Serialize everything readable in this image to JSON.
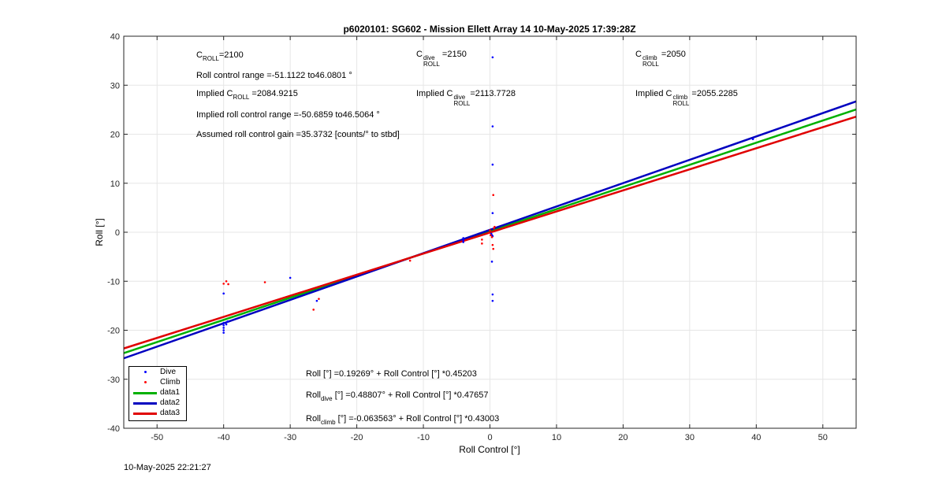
{
  "chart_data": {
    "type": "scatter",
    "title": "p6020101: SG602 - Mission Ellett Array 14 10-May-2025 17:39:28Z",
    "xlabel": "Roll Control [°]",
    "ylabel": "Roll [°]",
    "xlim": [
      -55,
      55
    ],
    "ylim": [
      -40,
      40
    ],
    "xticks": [
      -50,
      -40,
      -30,
      -20,
      -10,
      0,
      10,
      20,
      30,
      40,
      50
    ],
    "yticks": [
      -40,
      -30,
      -20,
      -10,
      0,
      10,
      20,
      30,
      40
    ],
    "grid": true,
    "legend_placement": "bottom-left",
    "series": [
      {
        "name": "Dive",
        "kind": "points",
        "color": "#0000ff",
        "points": [
          [
            -40,
            -12.5
          ],
          [
            -40,
            -18.5
          ],
          [
            -40,
            -19
          ],
          [
            -40,
            -19.5
          ],
          [
            -40,
            -20
          ],
          [
            -40,
            -20.5
          ],
          [
            -39.6,
            -18.8
          ],
          [
            -39.4,
            -18.2
          ],
          [
            -30,
            -9.3
          ],
          [
            -26,
            -14
          ],
          [
            -4,
            -1.2
          ],
          [
            -4,
            -1.6
          ],
          [
            -4,
            -2.0
          ],
          [
            0.2,
            -0.3
          ],
          [
            0.3,
            -0.6
          ],
          [
            0.4,
            -0.8
          ],
          [
            0.4,
            35.7
          ],
          [
            0.4,
            21.6
          ],
          [
            0.4,
            13.8
          ],
          [
            0.4,
            3.9
          ],
          [
            0.3,
            -6
          ],
          [
            0.4,
            -12.7
          ],
          [
            0.4,
            -14
          ],
          [
            16,
            8.2
          ],
          [
            39.5,
            19
          ]
        ]
      },
      {
        "name": "Climb",
        "kind": "points",
        "color": "#ff0000",
        "points": [
          [
            -40,
            -10.5
          ],
          [
            -39.6,
            -10
          ],
          [
            -39.3,
            -10.6
          ],
          [
            -33.8,
            -10.2
          ],
          [
            -26.5,
            -15.8
          ],
          [
            -25.7,
            -13.6
          ],
          [
            -12,
            -5.8
          ],
          [
            -1.2,
            -1.5
          ],
          [
            -1.2,
            -2.3
          ],
          [
            -0.2,
            -0.1
          ],
          [
            0.1,
            -0.6
          ],
          [
            0.3,
            -1.0
          ],
          [
            0.4,
            -2.6
          ],
          [
            0.5,
            -3.4
          ],
          [
            0.6,
            0.8
          ],
          [
            0.5,
            7.6
          ],
          [
            0.7,
            1.1
          ],
          [
            0,
            0.4
          ]
        ]
      },
      {
        "name": "data1",
        "kind": "line",
        "color": "#00b000",
        "intercept": 0.19269,
        "slope": 0.45203
      },
      {
        "name": "data2",
        "kind": "line",
        "color": "#0000c0",
        "intercept": 0.48807,
        "slope": 0.47657
      },
      {
        "name": "data3",
        "kind": "line",
        "color": "#e00000",
        "intercept": -0.063563,
        "slope": 0.43003
      }
    ]
  },
  "annotations": {
    "croll_base": "C",
    "croll_sub": "ROLL",
    "croll_val": "=2100",
    "roll_range": "Roll control range =-51.1122 to46.0801 °",
    "implied_prefix": "Implied C",
    "implied_val": " =2084.9215",
    "implied_range": "Implied roll control range =-50.6859 to46.5064 °",
    "gain": "Assumed roll control gain =35.3732 [counts/° to stbd]",
    "cdive_base": "C",
    "cdive_sup": "dive",
    "cdive_val": " =2150",
    "implied_dive_prefix": "Implied C",
    "implied_dive_val": "=2113.7728",
    "cclimb_base": "C",
    "cclimb_sup": "climb",
    "cclimb_val": " =2050",
    "implied_climb_prefix": "Implied C",
    "implied_climb_val": " =2055.2285",
    "eq_all": "Roll [°] =0.19269° + Roll Control [°] *0.45203",
    "eq_dive_prefix": "Roll",
    "eq_dive_sub": "dive",
    "eq_dive_rest": " [°] =0.48807° + Roll Control [°] *0.47657",
    "eq_climb_prefix": "Roll",
    "eq_climb_sub": "climb",
    "eq_climb_rest": " [°] =-0.063563° + Roll Control [°] *0.43003"
  },
  "legend": {
    "dive": "Dive",
    "climb": "Climb",
    "data1": "data1",
    "data2": "data2",
    "data3": "data3"
  },
  "footer": {
    "timestamp": "10-May-2025 22:21:27"
  }
}
